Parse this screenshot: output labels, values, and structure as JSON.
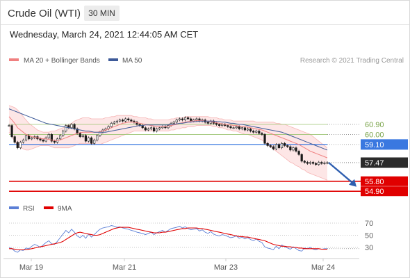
{
  "header": {
    "title": "Crude Oil (WTI)",
    "timeframe": "30 MIN"
  },
  "timestamp": "Wednesday, March 24, 2021 12:44:05 AM CET",
  "credit": "Research © 2021 Trading Central",
  "colors": {
    "bollinger": "#f08080",
    "bollinger_fill": "#fde3e3",
    "ma50": "#3d5a99",
    "blue_line": "#3a78e0",
    "green_line": "#9cc472",
    "red_line": "#e00000",
    "rsi": "#5b7fd6",
    "rsi_ma": "#e00000",
    "candle_up": "#1a1a1a",
    "arrow": "#2f5fb0"
  },
  "chart_data": [
    {
      "type": "candlestick",
      "legend": [
        "MA 20 + Bollinger Bands",
        "MA 50"
      ],
      "x_ticks": [
        "Mar 19",
        "Mar 21",
        "Mar 23",
        "Mar 24"
      ],
      "ylim": [
        54.0,
        64.0
      ],
      "levels": [
        {
          "label": "60.90",
          "value": 60.9,
          "kind": "resistance"
        },
        {
          "label": "60.00",
          "value": 60.0,
          "kind": "resistance"
        },
        {
          "label": "59.10",
          "value": 59.1,
          "kind": "pivot"
        },
        {
          "label": "57.47",
          "value": 57.47,
          "kind": "last"
        },
        {
          "label": "55.80",
          "value": 55.8,
          "kind": "target"
        },
        {
          "label": "54.90",
          "value": 54.9,
          "kind": "target"
        }
      ],
      "close": [
        60.8,
        59.8,
        59.3,
        58.8,
        59.3,
        59.5,
        59.9,
        59.6,
        59.7,
        59.8,
        59.6,
        59.5,
        59.4,
        59.7,
        60.0,
        59.4,
        59.3,
        59.6,
        59.9,
        60.3,
        60.8,
        60.6,
        60.9,
        60.5,
        60.1,
        59.8,
        59.9,
        59.4,
        59.7,
        59.2,
        59.5,
        59.9,
        60.2,
        60.4,
        60.5,
        60.7,
        61.0,
        61.1,
        61.2,
        61.3,
        61.2,
        61.4,
        61.3,
        61.2,
        61.1,
        60.9,
        60.8,
        60.6,
        60.4,
        60.5,
        60.6,
        60.3,
        60.5,
        60.6,
        60.7,
        60.6,
        60.8,
        61.0,
        61.1,
        61.3,
        61.4,
        61.3,
        61.5,
        61.4,
        61.2,
        61.3,
        61.4,
        61.2,
        61.3,
        61.1,
        61.0,
        61.2,
        61.0,
        60.9,
        60.8,
        60.9,
        60.8,
        60.7,
        60.6,
        60.6,
        60.7,
        60.5,
        60.6,
        60.4,
        60.5,
        60.3,
        60.2,
        60.3,
        60.1,
        60.0,
        59.2,
        59.0,
        58.9,
        58.7,
        59.1,
        58.8,
        59.2,
        59.0,
        58.9,
        58.6,
        58.8,
        58.5,
        58.2,
        57.6,
        57.5,
        57.4,
        57.5,
        57.4,
        57.3,
        57.5,
        57.4,
        57.45,
        57.47
      ],
      "ma20": [
        61.6,
        61.3,
        61.0,
        60.6,
        60.4,
        60.2,
        60.0,
        59.9,
        59.8,
        59.75,
        59.7,
        59.65,
        59.6,
        59.6,
        59.55,
        59.5,
        59.45,
        59.45,
        59.5,
        59.6,
        59.7,
        59.8,
        59.9,
        60.0,
        60.1,
        60.15,
        60.2,
        60.2,
        60.2,
        60.2,
        60.2,
        60.2,
        60.25,
        60.3,
        60.4,
        60.5,
        60.6,
        60.7,
        60.8,
        60.9,
        61.0,
        61.05,
        61.1,
        61.1,
        61.1,
        61.05,
        61.0,
        60.95,
        60.9,
        60.85,
        60.8,
        60.75,
        60.7,
        60.7,
        60.7,
        60.7,
        60.75,
        60.8,
        60.85,
        60.9,
        61.0,
        61.05,
        61.1,
        61.15,
        61.2,
        61.2,
        61.25,
        61.25,
        61.25,
        61.2,
        61.2,
        61.15,
        61.1,
        61.05,
        61.0,
        60.95,
        60.9,
        60.9,
        60.85,
        60.8,
        60.8,
        60.75,
        60.7,
        60.7,
        60.65,
        60.6,
        60.55,
        60.5,
        60.45,
        60.4,
        60.3,
        60.2,
        60.1,
        60.0,
        59.9,
        59.8,
        59.7,
        59.6,
        59.5,
        59.4,
        59.3,
        59.2,
        59.1,
        58.95,
        58.8,
        58.65,
        58.5,
        58.4,
        58.3,
        58.2,
        58.1,
        58.0,
        57.9
      ],
      "bb_upper": [
        62.6,
        62.5,
        62.4,
        62.2,
        61.9,
        61.6,
        61.3,
        61.0,
        60.8,
        60.6,
        60.4,
        60.3,
        60.2,
        60.2,
        60.2,
        60.3,
        60.3,
        60.4,
        60.5,
        60.6,
        60.7,
        60.9,
        61.0,
        61.2,
        61.3,
        61.4,
        61.5,
        61.5,
        61.5,
        61.4,
        61.4,
        61.4,
        61.4,
        61.4,
        61.5,
        61.5,
        61.6,
        61.6,
        61.7,
        61.7,
        61.7,
        61.7,
        61.7,
        61.7,
        61.6,
        61.6,
        61.5,
        61.5,
        61.5,
        61.4,
        61.4,
        61.3,
        61.3,
        61.3,
        61.3,
        61.3,
        61.3,
        61.4,
        61.4,
        61.5,
        61.5,
        61.5,
        61.6,
        61.6,
        61.6,
        61.6,
        61.6,
        61.6,
        61.6,
        61.6,
        61.6,
        61.5,
        61.5,
        61.5,
        61.4,
        61.4,
        61.3,
        61.3,
        61.3,
        61.2,
        61.2,
        61.2,
        61.2,
        61.2,
        61.2,
        61.2,
        61.2,
        61.1,
        61.1,
        61.1,
        61.1,
        61.1,
        61.1,
        61.1,
        61.0,
        61.0,
        60.9,
        60.9,
        60.8,
        60.7,
        60.6,
        60.5,
        60.4,
        60.3,
        60.2,
        60.1,
        60.0,
        59.8,
        59.6,
        59.4,
        59.2,
        59.0,
        58.8
      ],
      "bb_lower": [
        60.2,
        59.8,
        59.4,
        59.0,
        58.8,
        58.7,
        58.6,
        58.6,
        58.7,
        58.8,
        58.9,
        59.0,
        59.0,
        59.0,
        59.0,
        58.9,
        58.8,
        58.8,
        58.8,
        58.8,
        58.8,
        58.8,
        58.9,
        59.0,
        59.1,
        59.2,
        59.2,
        59.2,
        59.2,
        59.2,
        59.1,
        59.1,
        59.1,
        59.2,
        59.3,
        59.4,
        59.5,
        59.6,
        59.7,
        59.8,
        59.9,
        60.0,
        60.1,
        60.2,
        60.3,
        60.3,
        60.3,
        60.3,
        60.3,
        60.3,
        60.3,
        60.3,
        60.3,
        60.3,
        60.3,
        60.3,
        60.3,
        60.4,
        60.4,
        60.5,
        60.5,
        60.6,
        60.6,
        60.7,
        60.7,
        60.7,
        60.8,
        60.8,
        60.8,
        60.8,
        60.8,
        60.8,
        60.7,
        60.7,
        60.6,
        60.6,
        60.5,
        60.4,
        60.4,
        60.3,
        60.3,
        60.2,
        60.1,
        60.0,
        60.0,
        59.9,
        59.8,
        59.7,
        59.6,
        59.5,
        59.3,
        59.1,
        58.9,
        58.7,
        58.5,
        58.3,
        58.1,
        57.9,
        57.7,
        57.5,
        57.4,
        57.2,
        57.1,
        56.9,
        56.8,
        56.6,
        56.5,
        56.4,
        56.3,
        56.2,
        56.1,
        56.0,
        55.9
      ],
      "ma50": [
        62.3,
        62.2,
        62.1,
        62.0,
        61.9,
        61.8,
        61.7,
        61.6,
        61.5,
        61.4,
        61.3,
        61.2,
        61.1,
        61.0,
        60.95,
        60.9,
        60.85,
        60.8,
        60.75,
        60.7,
        60.65,
        60.6,
        60.55,
        60.5,
        60.45,
        60.4,
        60.35,
        60.3,
        60.3,
        60.25,
        60.2,
        60.2,
        60.2,
        60.2,
        60.2,
        60.25,
        60.3,
        60.35,
        60.4,
        60.45,
        60.5,
        60.55,
        60.6,
        60.65,
        60.7,
        60.75,
        60.8,
        60.8,
        60.85,
        60.85,
        60.85,
        60.85,
        60.85,
        60.85,
        60.85,
        60.85,
        60.85,
        60.9,
        60.9,
        60.95,
        61.0,
        61.0,
        61.05,
        61.1,
        61.1,
        61.15,
        61.15,
        61.2,
        61.2,
        61.2,
        61.2,
        61.2,
        61.2,
        61.15,
        61.15,
        61.1,
        61.1,
        61.05,
        61.0,
        61.0,
        60.95,
        60.9,
        60.9,
        60.85,
        60.8,
        60.75,
        60.7,
        60.65,
        60.6,
        60.55,
        60.5,
        60.45,
        60.4,
        60.35,
        60.3,
        60.25,
        60.2,
        60.1,
        60.0,
        59.9,
        59.8,
        59.7,
        59.6,
        59.5,
        59.4,
        59.3,
        59.2,
        59.1,
        59.0,
        58.9,
        58.8,
        58.7,
        58.6
      ]
    },
    {
      "type": "line",
      "legend": [
        "RSI",
        "9MA"
      ],
      "y_ticks": [
        "70",
        "50",
        "30"
      ],
      "ylim": [
        15,
        80
      ],
      "series": [
        {
          "name": "RSI",
          "values": [
            30,
            28,
            24,
            22,
            26,
            25,
            29,
            28,
            32,
            35,
            33,
            30,
            34,
            38,
            41,
            36,
            35,
            40,
            46,
            52,
            58,
            54,
            60,
            55,
            49,
            46,
            50,
            45,
            52,
            47,
            51,
            56,
            60,
            62,
            63,
            64,
            66,
            65,
            63,
            64,
            62,
            61,
            60,
            58,
            57,
            55,
            54,
            53,
            51,
            53,
            55,
            51,
            54,
            56,
            58,
            55,
            58,
            61,
            62,
            63,
            65,
            62,
            64,
            61,
            59,
            60,
            61,
            57,
            59,
            55,
            53,
            56,
            52,
            50,
            49,
            51,
            50,
            48,
            46,
            47,
            49,
            45,
            47,
            44,
            46,
            43,
            41,
            44,
            40,
            38,
            31,
            29,
            28,
            26,
            32,
            28,
            34,
            31,
            29,
            27,
            31,
            28,
            25,
            24,
            29,
            28,
            30,
            27,
            26,
            28,
            27,
            28,
            28
          ]
        },
        {
          "name": "9MA",
          "values": [
            28,
            28,
            27,
            26,
            26,
            26,
            26,
            27,
            28,
            29,
            30,
            31,
            32,
            33,
            34,
            35,
            36,
            37,
            38,
            40,
            43,
            46,
            49,
            52,
            54,
            55,
            54,
            53,
            52,
            51,
            50,
            50,
            51,
            53,
            55,
            57,
            59,
            61,
            62,
            63,
            63,
            63,
            63,
            62,
            61,
            60,
            59,
            58,
            57,
            56,
            55,
            54,
            54,
            54,
            55,
            55,
            56,
            57,
            58,
            59,
            60,
            61,
            61,
            62,
            62,
            62,
            62,
            61,
            61,
            60,
            59,
            58,
            57,
            56,
            55,
            54,
            53,
            52,
            51,
            50,
            49,
            48,
            48,
            47,
            47,
            46,
            45,
            44,
            43,
            42,
            41,
            39,
            37,
            35,
            34,
            33,
            32,
            32,
            31,
            31,
            30,
            30,
            29,
            29,
            28,
            28,
            28,
            28,
            28,
            28,
            27,
            27,
            27
          ]
        }
      ]
    }
  ]
}
